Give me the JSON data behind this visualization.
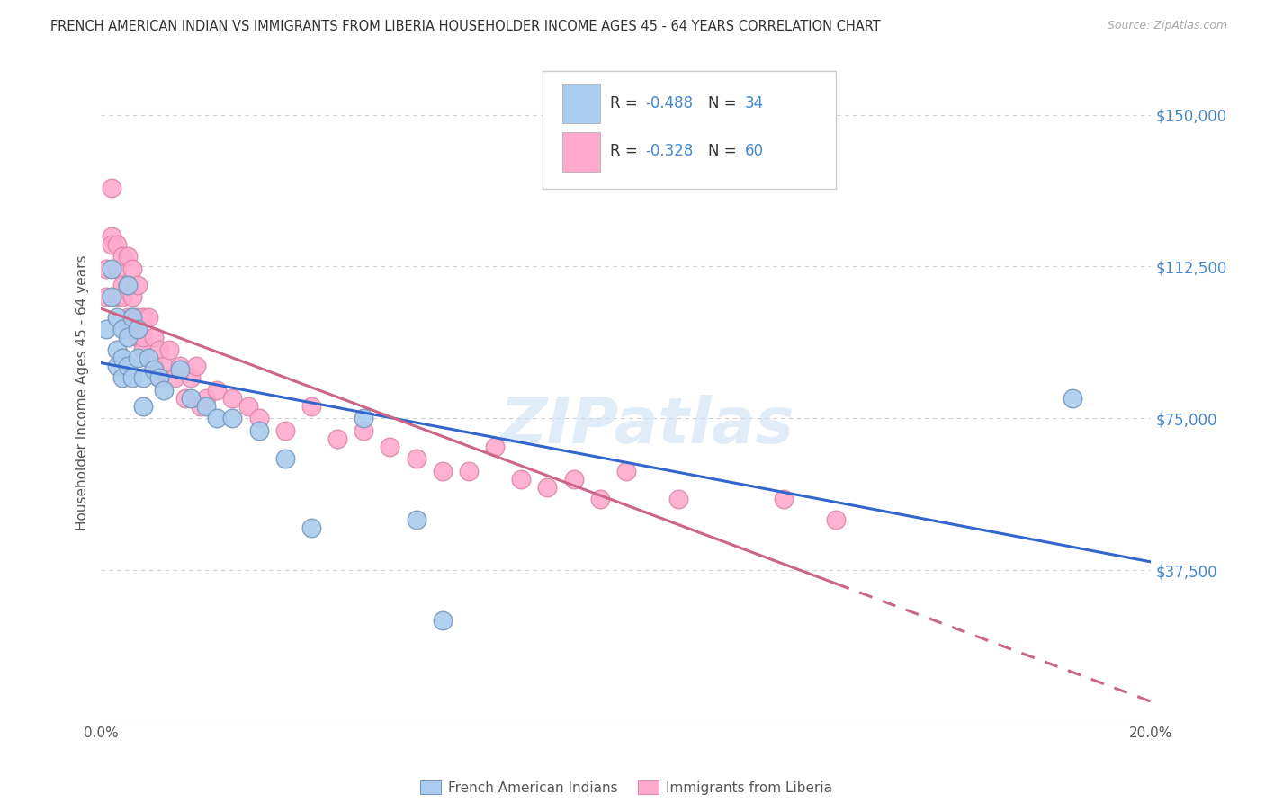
{
  "title": "FRENCH AMERICAN INDIAN VS IMMIGRANTS FROM LIBERIA HOUSEHOLDER INCOME AGES 45 - 64 YEARS CORRELATION CHART",
  "source": "Source: ZipAtlas.com",
  "ylabel": "Householder Income Ages 45 - 64 years",
  "xlim": [
    0.0,
    0.2
  ],
  "ylim": [
    0,
    162500
  ],
  "xticks": [
    0.0,
    0.05,
    0.1,
    0.15,
    0.2
  ],
  "xticklabels": [
    "0.0%",
    "",
    "",
    "",
    "20.0%"
  ],
  "ytick_values": [
    0,
    37500,
    75000,
    112500,
    150000
  ],
  "ytick_labels": [
    "",
    "$37,500",
    "$75,000",
    "$112,500",
    "$150,000"
  ],
  "grid_color": "#d0d0d0",
  "background_color": "#ffffff",
  "blue_line_color": "#3366cc",
  "pink_line_color": "#cc6688",
  "blue_scatter_fill": "#aaccee",
  "blue_scatter_edge": "#7799bb",
  "pink_scatter_fill": "#ffaacc",
  "pink_scatter_edge": "#dd88aa",
  "blue_R": -0.488,
  "blue_N": 34,
  "pink_R": -0.328,
  "pink_N": 60,
  "watermark": "ZIPatlas",
  "legend_label_blue": "French American Indians",
  "legend_label_pink": "Immigrants from Liberia",
  "blue_scatter_x": [
    0.001,
    0.002,
    0.002,
    0.003,
    0.003,
    0.003,
    0.004,
    0.004,
    0.004,
    0.005,
    0.005,
    0.005,
    0.006,
    0.006,
    0.007,
    0.007,
    0.008,
    0.008,
    0.009,
    0.01,
    0.011,
    0.012,
    0.015,
    0.017,
    0.02,
    0.022,
    0.025,
    0.03,
    0.035,
    0.04,
    0.05,
    0.06,
    0.065,
    0.185
  ],
  "blue_scatter_y": [
    97000,
    105000,
    112000,
    100000,
    92000,
    88000,
    97000,
    90000,
    85000,
    108000,
    95000,
    88000,
    100000,
    85000,
    97000,
    90000,
    85000,
    78000,
    90000,
    87000,
    85000,
    82000,
    87000,
    80000,
    78000,
    75000,
    75000,
    72000,
    65000,
    48000,
    75000,
    50000,
    25000,
    80000
  ],
  "pink_scatter_x": [
    0.001,
    0.001,
    0.002,
    0.002,
    0.002,
    0.003,
    0.003,
    0.003,
    0.004,
    0.004,
    0.004,
    0.005,
    0.005,
    0.005,
    0.005,
    0.006,
    0.006,
    0.006,
    0.007,
    0.007,
    0.007,
    0.008,
    0.008,
    0.008,
    0.009,
    0.009,
    0.01,
    0.01,
    0.011,
    0.011,
    0.012,
    0.013,
    0.014,
    0.015,
    0.016,
    0.017,
    0.018,
    0.019,
    0.02,
    0.022,
    0.025,
    0.028,
    0.03,
    0.035,
    0.04,
    0.045,
    0.05,
    0.055,
    0.06,
    0.065,
    0.07,
    0.075,
    0.08,
    0.085,
    0.09,
    0.095,
    0.1,
    0.11,
    0.13,
    0.14
  ],
  "pink_scatter_y": [
    112000,
    105000,
    120000,
    132000,
    118000,
    112000,
    105000,
    118000,
    108000,
    115000,
    105000,
    115000,
    108000,
    100000,
    97000,
    105000,
    112000,
    100000,
    108000,
    100000,
    95000,
    100000,
    92000,
    95000,
    100000,
    90000,
    95000,
    88000,
    92000,
    85000,
    88000,
    92000,
    85000,
    88000,
    80000,
    85000,
    88000,
    78000,
    80000,
    82000,
    80000,
    78000,
    75000,
    72000,
    78000,
    70000,
    72000,
    68000,
    65000,
    62000,
    62000,
    68000,
    60000,
    58000,
    60000,
    55000,
    62000,
    55000,
    55000,
    50000
  ]
}
